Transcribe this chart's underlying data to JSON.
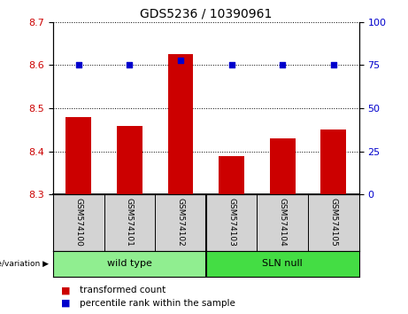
{
  "title": "GDS5236 / 10390961",
  "samples": [
    "GSM574100",
    "GSM574101",
    "GSM574102",
    "GSM574103",
    "GSM574104",
    "GSM574105"
  ],
  "transformed_counts": [
    8.48,
    8.46,
    8.625,
    8.39,
    8.43,
    8.45
  ],
  "percentile_ranks": [
    75,
    75,
    78,
    75,
    75,
    75
  ],
  "bar_bottom": 8.3,
  "ylim_left": [
    8.3,
    8.7
  ],
  "ylim_right": [
    0,
    100
  ],
  "yticks_left": [
    8.3,
    8.4,
    8.5,
    8.6,
    8.7
  ],
  "yticks_right": [
    0,
    25,
    50,
    75,
    100
  ],
  "bar_color": "#cc0000",
  "dot_color": "#0000cc",
  "bg_color_label": "#d3d3d3",
  "bg_color_group_wt": "#90ee90",
  "bg_color_group_sln": "#44dd44",
  "group_labels": [
    "wild type",
    "SLN null"
  ],
  "legend_bar_label": "transformed count",
  "legend_dot_label": "percentile rank within the sample",
  "xlabel_text": "genotype/variation",
  "title_fontsize": 10,
  "tick_fontsize": 8,
  "label_fontsize": 7,
  "group_fontsize": 8,
  "legend_fontsize": 7.5
}
